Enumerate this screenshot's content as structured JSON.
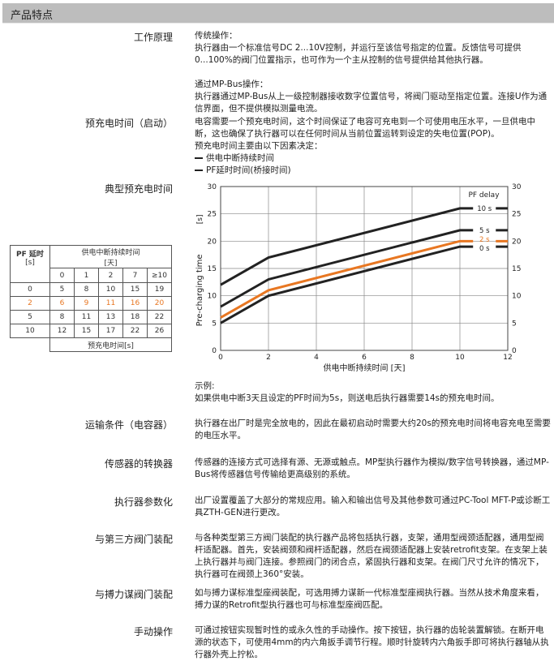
{
  "header": {
    "title": "产品特点"
  },
  "sections": [
    {
      "label": "工作原理",
      "paras": [
        "传统操作：",
        "执行器由一个标准信号DC 2...10V控制，并运行至该信号指定的位置。反馈信号可提供0...100%的阀门位置指示，也可作为一个主从控制的信号提供给其他执行器。",
        "通过MP-Bus操作：",
        "执行器通过MP-Bus从上一级控制器接收数字位置信号，将阀门驱动至指定位置。连接U作为通信界面，但不提供模拟测量电流。"
      ]
    },
    {
      "label": "预充电时间（启动）",
      "paras": [
        "电容需要一个预充电时间，这个时间保证了电容可充电到一个可使用电压水平，一旦供电中断，这也确保了执行器可以在任何时间从当前位置运转到设定的失电位置(POP)。",
        "预充电时间主要由以下因素决定："
      ],
      "bullets": [
        "供电中断持续时间",
        "PF延时时间(桥接时间)"
      ]
    },
    {
      "label": "典型预充电时间"
    },
    {
      "label": "",
      "paras": [
        "示例:",
        "如果供电中断3天且设定的PF时间为5s，则送电后执行器需要14s的预充电时间。"
      ]
    },
    {
      "label": "运输条件（电容器）",
      "paras": [
        "执行器在出厂时是完全放电的，因此在最初启动时需要大约20s的预充电时间将电容充电至需要的电压水平。"
      ]
    },
    {
      "label": "传感器的转换器",
      "paras": [
        "传感器的连接方式可选择有源、无源或触点。MP型执行器作为模拟/数字信号转换器，通过MP-Bus将传感器信号传输给更高级别的系统。"
      ]
    },
    {
      "label": "执行器参数化",
      "paras": [
        "出厂设置覆盖了大部分的常规应用。输入和输出信号及其他参数可通过PC-Tool MFT-P或诊断工具ZTH-GEN进行更改。"
      ]
    },
    {
      "label": "与第三方阀门装配",
      "paras": [
        "与各种类型第三方阀门装配的执行器产品将包括执行器，支架，通用型阀颈适配器，通用型阀杆适配器。首先，安装阀颈和阀杆适配器，然后在阀颈适配器上安装retrofit支架。在支架上装上执行器并与阀门连接。参照阀门的闭合点，紧固执行器和支架。在阀门尺寸允许的情况下，执行器可在阀颈上360°安装。"
      ]
    },
    {
      "label": "与搏力谋阀门装配",
      "paras": [
        "如与搏力谋标准型座阀装配，可选用搏力谋新一代标准型座阀执行器。当然从技术角度来看，搏力谋的Retrofit型执行器也可与标准型座阀匹配。"
      ]
    },
    {
      "label": "手动操作",
      "paras": [
        "可通过按钮实现暂时性的或永久性的手动操作。按下按钮，执行器的齿轮装置解锁。在断开电源的状态下，可使用4mm的内六角扳手调节行程。顺时针旋转内六角扳手即可将执行器轴从执行器外壳上拧松。"
      ]
    }
  ],
  "table": {
    "corner_title": "PF 延时",
    "corner_unit": "[s]",
    "col_group": "供电中断持续时间",
    "col_unit": "[天]",
    "columns": [
      "0",
      "1",
      "2",
      "7",
      "≥10"
    ],
    "rows": [
      {
        "pf": "0",
        "values": [
          "5",
          "8",
          "10",
          "15",
          "19"
        ]
      },
      {
        "pf": "2",
        "values": [
          "6",
          "9",
          "11",
          "16",
          "20"
        ]
      },
      {
        "pf": "5",
        "values": [
          "8",
          "11",
          "13",
          "18",
          "22"
        ]
      },
      {
        "pf": "10",
        "values": [
          "12",
          "15",
          "17",
          "22",
          "26"
        ]
      }
    ],
    "footer": "预充电时间[s]",
    "highlight_color": "#e87722"
  },
  "chart_data": {
    "type": "line",
    "xlabel": "供电中断持续时间 [天]",
    "ylabel": "Pre-charging time",
    "yunit": "[s]",
    "xlim": [
      0,
      12
    ],
    "ylim": [
      0,
      30
    ],
    "xticks": [
      "0",
      "2",
      "4",
      "6",
      "8",
      "10",
      "12"
    ],
    "yticks": [
      "0",
      "5",
      "10",
      "15",
      "20",
      "25",
      "30"
    ],
    "grid": true,
    "legend_title": "PF delay",
    "legend_placement": "right",
    "x": [
      0,
      2,
      10,
      12
    ],
    "series": [
      {
        "name": "10 s",
        "values": [
          12,
          17,
          26,
          26
        ],
        "color": "#222222"
      },
      {
        "name": "5 s",
        "values": [
          8,
          13,
          22,
          22
        ],
        "color": "#222222"
      },
      {
        "name": "2 s",
        "values": [
          6,
          11,
          20,
          20
        ],
        "color": "#e87722"
      },
      {
        "name": "0 s",
        "values": [
          5,
          10,
          19,
          19
        ],
        "color": "#222222"
      }
    ]
  }
}
